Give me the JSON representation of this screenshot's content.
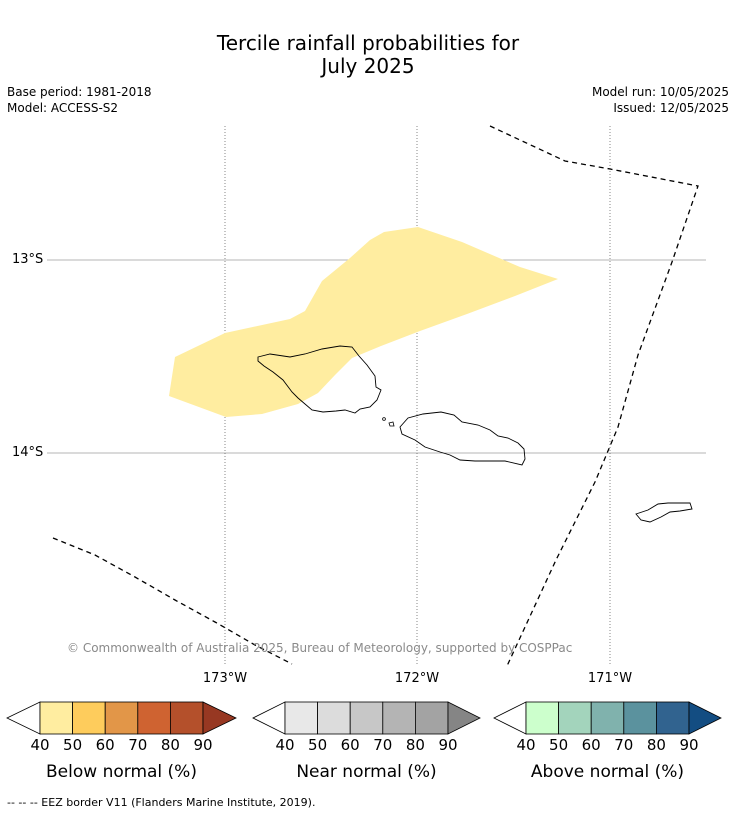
{
  "title": {
    "line1": "Tercile rainfall probabilities for",
    "line2": "July 2025"
  },
  "meta": {
    "base_period": "Base period: 1981-2018",
    "model": "Model: ACCESS-S2",
    "model_run": "Model run: 10/05/2025",
    "issued": "Issued: 12/05/2025"
  },
  "map": {
    "lat_labels": [
      "13°S",
      "14°S"
    ],
    "lon_labels": [
      "173°W",
      "172°W",
      "171°W"
    ],
    "copyright": "© Commonwealth of Australia 2025, Bureau of Meteorology, supported by COSPPac",
    "below_normal_region_probability": "40–50",
    "colors": {
      "below_40_50": "#FFEDA0",
      "coast": "#000000",
      "eez": "#000000",
      "grid": "#9b9b9b"
    }
  },
  "colorbars": [
    {
      "label": "Below normal (%)",
      "ticks": [
        "40",
        "50",
        "60",
        "70",
        "80",
        "90"
      ],
      "colors": [
        "#FFEDA0",
        "#FECC5C",
        "#E29648",
        "#CF6331",
        "#B4502B",
        "#973822"
      ]
    },
    {
      "label": "Near normal (%)",
      "ticks": [
        "40",
        "50",
        "60",
        "70",
        "80",
        "90"
      ],
      "colors": [
        "#E8E8E8",
        "#DCDCDC",
        "#C7C7C7",
        "#B4B4B4",
        "#A3A3A3",
        "#858585"
      ]
    },
    {
      "label": "Above normal (%)",
      "ticks": [
        "40",
        "50",
        "60",
        "70",
        "80",
        "90"
      ],
      "colors": [
        "#CCFFCC",
        "#A3D4BC",
        "#80B2AD",
        "#5B929E",
        "#31638F",
        "#134D82"
      ]
    }
  ],
  "footer": "--  --  -- EEZ border V11 (Flanders Marine Institute, 2019)."
}
